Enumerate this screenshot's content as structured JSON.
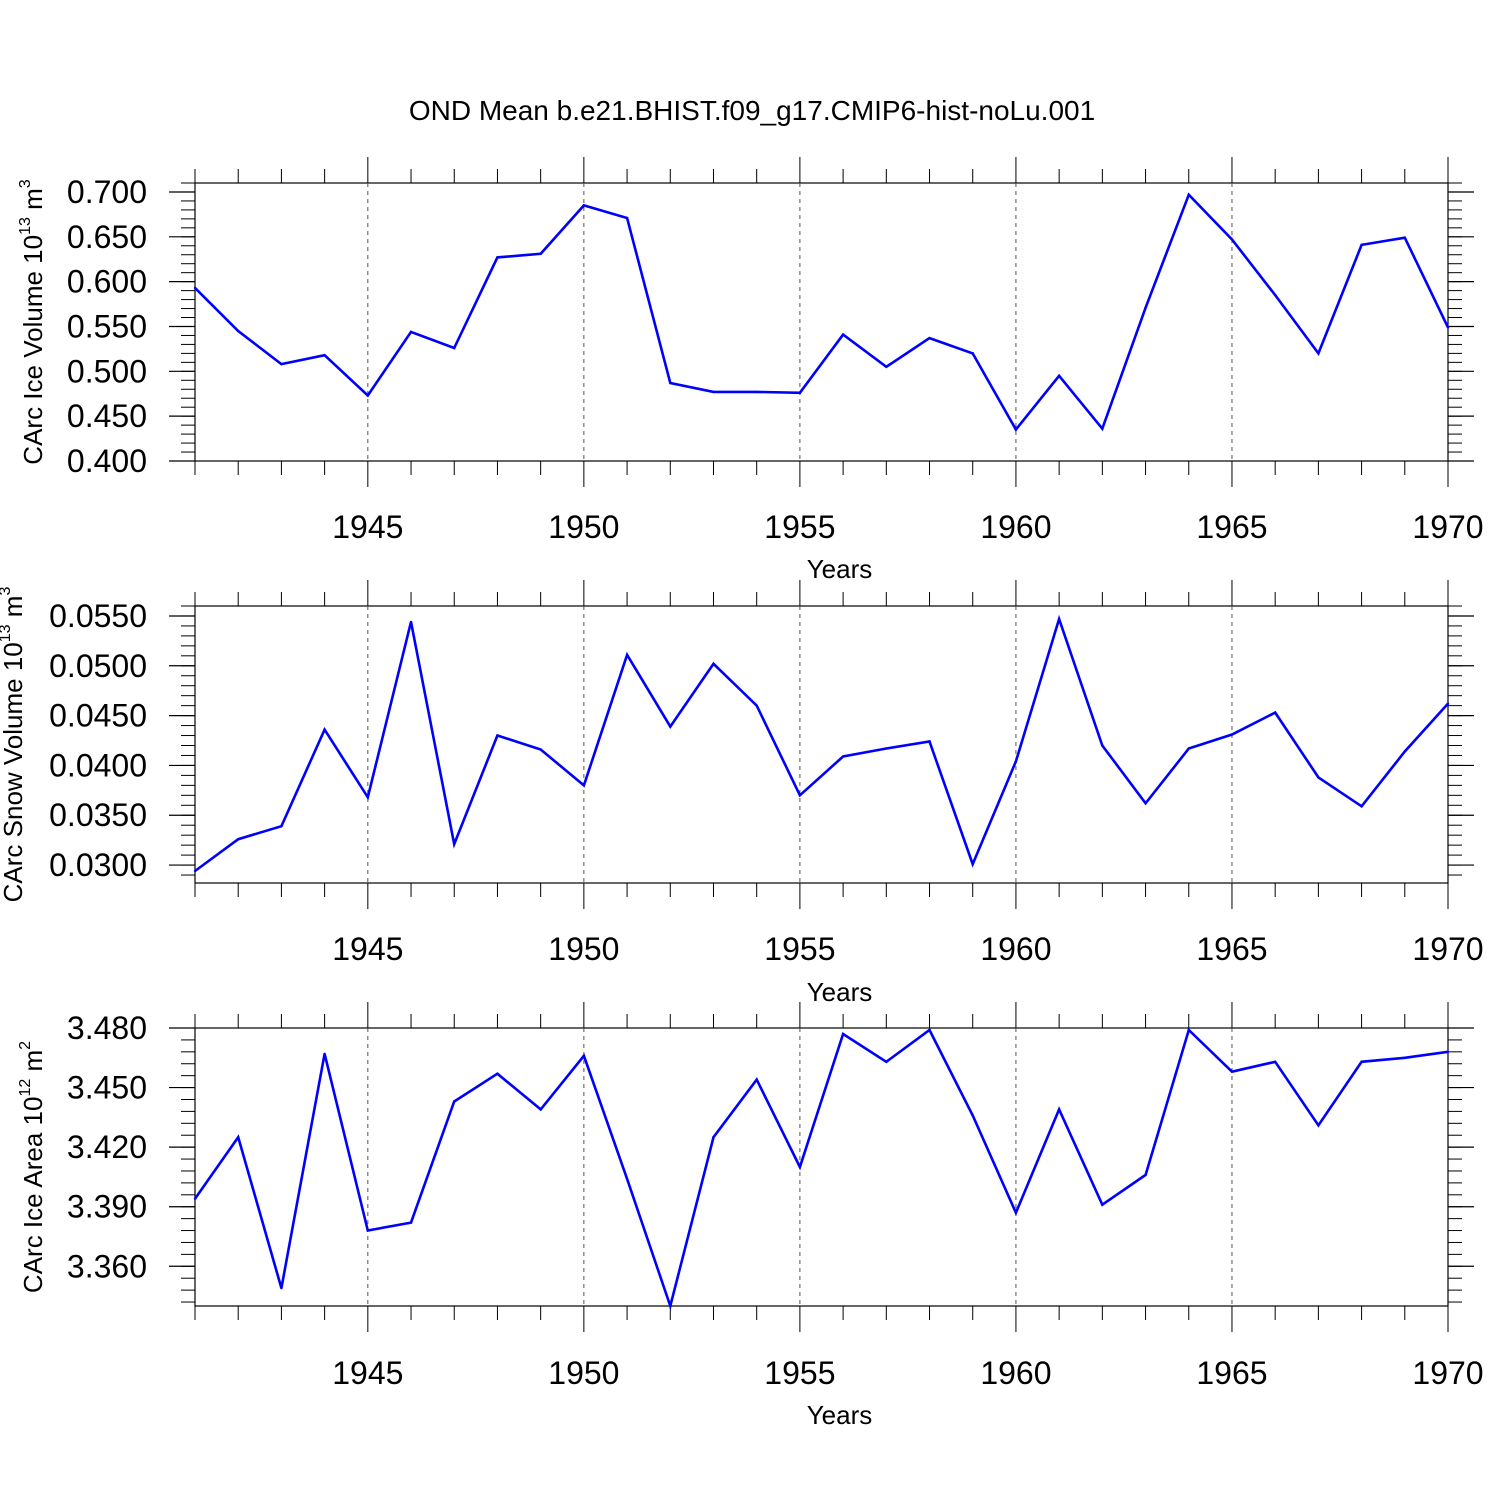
{
  "title": "OND Mean b.e21.BHIST.f09_g17.CMIP6-hist-noLu.001",
  "colors": {
    "series": "#0000ff",
    "axis": "#000000",
    "refline": "#555555"
  },
  "chart_data": [
    {
      "type": "line",
      "title": "OND Mean b.e21.BHIST.f09_g17.CMIP6-hist-noLu.001",
      "xlabel": "Years",
      "ylabel": {
        "text": "CArc Ice Volume 10",
        "exponent": "13",
        "unit": " m",
        "unit_exponent": "3"
      },
      "xlim": [
        1941,
        1970
      ],
      "ylim": [
        0.4,
        0.71
      ],
      "x_ticks": [
        1945,
        1950,
        1955,
        1960,
        1965,
        1970
      ],
      "y_ticks": [
        "0.400",
        "0.450",
        "0.500",
        "0.550",
        "0.600",
        "0.650",
        "0.700"
      ],
      "y_tick_values": [
        0.4,
        0.45,
        0.5,
        0.55,
        0.6,
        0.65,
        0.7
      ],
      "y_minor_step": 0.01,
      "reference_lines_x": [
        1945,
        1950,
        1955,
        1960,
        1965
      ],
      "series": [
        {
          "name": "CArc Ice Volume",
          "x": [
            1941,
            1942,
            1943,
            1944,
            1945,
            1946,
            1947,
            1948,
            1949,
            1950,
            1951,
            1952,
            1953,
            1954,
            1955,
            1956,
            1957,
            1958,
            1959,
            1960,
            1961,
            1962,
            1963,
            1964,
            1965,
            1966,
            1967,
            1968,
            1969,
            1970
          ],
          "values": [
            0.593,
            0.545,
            0.508,
            0.518,
            0.473,
            0.544,
            0.526,
            0.627,
            0.631,
            0.685,
            0.671,
            0.487,
            0.477,
            0.477,
            0.476,
            0.541,
            0.505,
            0.537,
            0.52,
            0.435,
            0.495,
            0.436,
            0.571,
            0.697,
            0.647,
            0.585,
            0.52,
            0.641,
            0.649,
            0.549
          ]
        }
      ]
    },
    {
      "type": "line",
      "title": "",
      "xlabel": "Years",
      "ylabel": {
        "text": "CArc Snow Volume 10",
        "exponent": "13",
        "unit": " m",
        "unit_exponent": "3"
      },
      "xlim": [
        1941,
        1970
      ],
      "ylim": [
        0.0282,
        0.056
      ],
      "x_ticks": [
        1945,
        1950,
        1955,
        1960,
        1965,
        1970
      ],
      "y_ticks": [
        "0.0300",
        "0.0350",
        "0.0400",
        "0.0450",
        "0.0500",
        "0.0550"
      ],
      "y_tick_values": [
        0.03,
        0.035,
        0.04,
        0.045,
        0.05,
        0.055
      ],
      "y_minor_step": 0.001,
      "reference_lines_x": [
        1945,
        1950,
        1955,
        1960,
        1965
      ],
      "series": [
        {
          "name": "CArc Snow Volume",
          "x": [
            1941,
            1942,
            1943,
            1944,
            1945,
            1946,
            1947,
            1948,
            1949,
            1950,
            1951,
            1952,
            1953,
            1954,
            1955,
            1956,
            1957,
            1958,
            1959,
            1960,
            1961,
            1962,
            1963,
            1964,
            1965,
            1966,
            1967,
            1968,
            1969,
            1970
          ],
          "values": [
            0.0294,
            0.0326,
            0.0339,
            0.0436,
            0.0368,
            0.0544,
            0.0321,
            0.043,
            0.0416,
            0.038,
            0.0511,
            0.0439,
            0.0502,
            0.046,
            0.037,
            0.0409,
            0.0417,
            0.0424,
            0.0301,
            0.0404,
            0.0547,
            0.042,
            0.0362,
            0.0417,
            0.0431,
            0.0453,
            0.0388,
            0.0359,
            0.0414,
            0.0462
          ]
        }
      ]
    },
    {
      "type": "line",
      "title": "",
      "xlabel": "Years",
      "ylabel": {
        "text": "CArc Ice Area 10",
        "exponent": "12",
        "unit": " m",
        "unit_exponent": "2"
      },
      "xlim": [
        1941,
        1970
      ],
      "ylim": [
        3.34,
        3.48
      ],
      "x_ticks": [
        1945,
        1950,
        1955,
        1960,
        1965,
        1970
      ],
      "y_ticks": [
        "3.360",
        "3.390",
        "3.420",
        "3.450",
        "3.480"
      ],
      "y_tick_values": [
        3.36,
        3.39,
        3.42,
        3.45,
        3.48
      ],
      "y_minor_step": 0.006,
      "reference_lines_x": [
        1945,
        1950,
        1955,
        1960,
        1965
      ],
      "series": [
        {
          "name": "CArc Ice Area",
          "x": [
            1941,
            1942,
            1943,
            1944,
            1945,
            1946,
            1947,
            1948,
            1949,
            1950,
            1951,
            1952,
            1953,
            1954,
            1955,
            1956,
            1957,
            1958,
            1959,
            1960,
            1961,
            1962,
            1963,
            1964,
            1965,
            1966,
            1967,
            1968,
            1969,
            1970
          ],
          "values": [
            3.394,
            3.425,
            3.349,
            3.467,
            3.378,
            3.382,
            3.443,
            3.457,
            3.439,
            3.466,
            3.404,
            3.34,
            3.425,
            3.454,
            3.41,
            3.477,
            3.463,
            3.479,
            3.436,
            3.387,
            3.439,
            3.391,
            3.406,
            3.479,
            3.458,
            3.463,
            3.431,
            3.463,
            3.465,
            3.468
          ]
        }
      ]
    }
  ]
}
